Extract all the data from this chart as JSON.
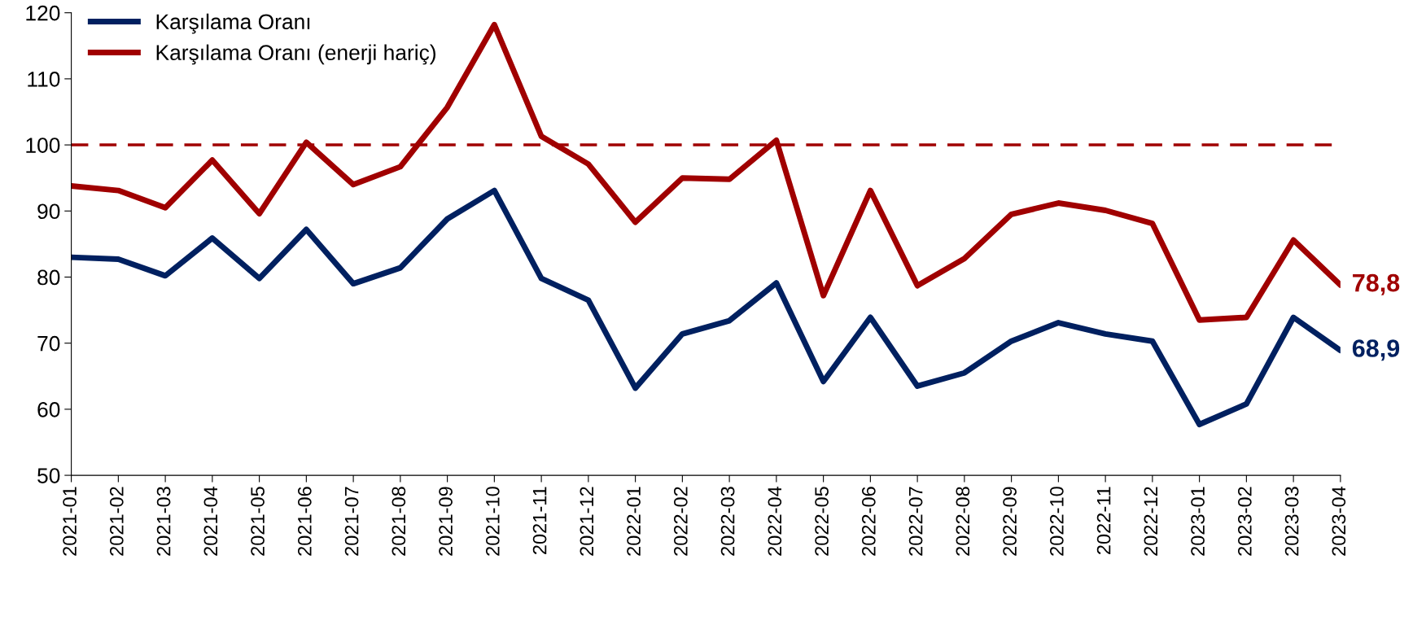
{
  "chart_data": {
    "type": "line",
    "categories": [
      "2021-01",
      "2021-02",
      "2021-03",
      "2021-04",
      "2021-05",
      "2021-06",
      "2021-07",
      "2021-08",
      "2021-09",
      "2021-10",
      "2021-11",
      "2021-12",
      "2022-01",
      "2022-02",
      "2022-03",
      "2022-04",
      "2022-05",
      "2022-06",
      "2022-07",
      "2022-08",
      "2022-09",
      "2022-10",
      "2022-11",
      "2022-12",
      "2023-01",
      "2023-02",
      "2023-03",
      "2023-04"
    ],
    "series": [
      {
        "name": "Karşılama Oranı",
        "color": "#002060",
        "values": [
          83.0,
          82.7,
          80.2,
          85.9,
          79.8,
          87.2,
          79.0,
          81.4,
          88.8,
          93.1,
          79.8,
          76.5,
          63.2,
          71.4,
          73.4,
          79.1,
          64.2,
          73.9,
          63.5,
          65.5,
          70.3,
          73.1,
          71.4,
          70.3,
          57.7,
          60.8,
          73.9,
          68.9
        ],
        "value_labels": [
          null,
          null,
          null,
          null,
          null,
          null,
          null,
          null,
          null,
          null,
          null,
          null,
          null,
          null,
          null,
          null,
          null,
          null,
          null,
          null,
          null,
          null,
          null,
          null,
          null,
          null,
          null,
          "68,9"
        ]
      },
      {
        "name": "Karşılama Oranı (enerji hariç)",
        "color": "#a00000",
        "values": [
          93.8,
          93.1,
          90.5,
          97.7,
          89.6,
          100.4,
          94.0,
          96.7,
          105.7,
          118.2,
          101.3,
          97.1,
          88.3,
          95.0,
          94.8,
          100.7,
          77.2,
          93.1,
          78.7,
          82.8,
          89.5,
          91.2,
          90.1,
          88.1,
          73.5,
          73.9,
          85.6,
          78.8
        ],
        "value_labels": [
          null,
          null,
          null,
          null,
          null,
          null,
          null,
          null,
          null,
          null,
          null,
          null,
          null,
          null,
          null,
          null,
          null,
          null,
          null,
          null,
          null,
          null,
          null,
          null,
          null,
          null,
          null,
          "78,8"
        ]
      }
    ],
    "ylim": [
      50,
      120
    ],
    "yticks": [
      50,
      60,
      70,
      80,
      90,
      100,
      110,
      120
    ],
    "ref_lines": [
      {
        "axis": "y",
        "value": 100,
        "color": "#a00000",
        "line_style": "dashed"
      }
    ],
    "grid": false,
    "legend": "top left",
    "marker": "none",
    "line_style": "solid"
  }
}
